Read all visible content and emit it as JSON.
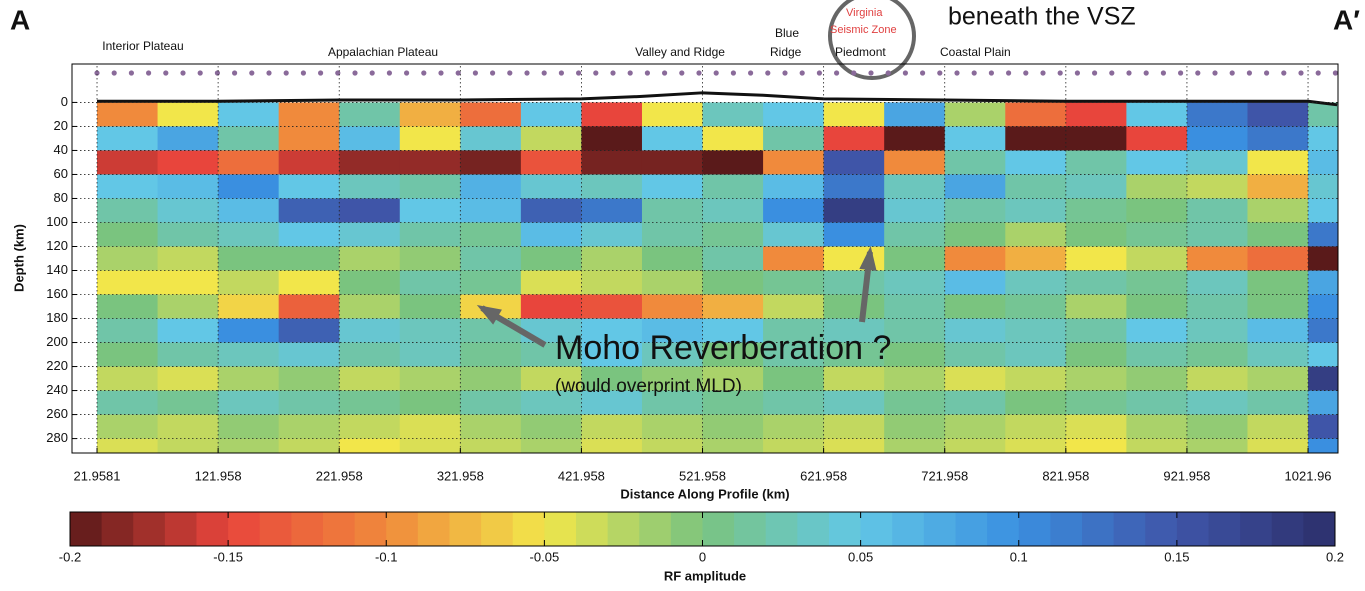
{
  "chart_data": {
    "type": "heatmap",
    "title_left": "A",
    "title_right": "A′",
    "xlabel": "Distance Along Profile (km)",
    "ylabel": "Depth (km)",
    "xlim": [
      1.3,
      1046.7
    ],
    "ylim": [
      -32,
      292
    ],
    "y_inverted": true,
    "xticks": [
      21.9581,
      121.958,
      221.958,
      321.958,
      421.958,
      521.958,
      621.958,
      721.958,
      821.958,
      921.958,
      1021.96
    ],
    "yticks": [
      0,
      20,
      40,
      60,
      80,
      100,
      120,
      140,
      160,
      180,
      200,
      220,
      240,
      260,
      280
    ],
    "grid": true,
    "xbins": [
      21.9581,
      71.958,
      121.958,
      171.958,
      221.958,
      271.958,
      321.958,
      371.958,
      421.958,
      471.958,
      521.958,
      571.958,
      621.958,
      671.958,
      721.958,
      771.958,
      821.958,
      871.958,
      921.958,
      971.958,
      1021.96,
      1071.96
    ],
    "ybins": [
      0,
      20,
      40,
      60,
      80,
      100,
      120,
      140,
      160,
      180,
      200,
      220,
      240,
      260,
      280,
      300
    ],
    "z": [
      [
        -0.1,
        -0.05,
        0.05,
        -0.1,
        0.02,
        -0.08,
        -0.12,
        0.05,
        -0.15,
        -0.05,
        0.03,
        0.05,
        -0.05,
        0.08,
        -0.02,
        -0.12,
        -0.15,
        0.05,
        0.12,
        0.15,
        0.02
      ],
      [
        0.05,
        0.08,
        0.02,
        -0.1,
        0.06,
        -0.05,
        0.04,
        -0.03,
        -0.2,
        0.05,
        -0.05,
        0.02,
        -0.15,
        -0.2,
        0.05,
        -0.2,
        -0.2,
        -0.15,
        0.1,
        0.12,
        0.05
      ],
      [
        -0.16,
        -0.15,
        -0.12,
        -0.16,
        -0.18,
        -0.18,
        -0.19,
        -0.14,
        -0.19,
        -0.19,
        -0.2,
        -0.1,
        0.15,
        -0.1,
        0.02,
        0.05,
        0.02,
        0.05,
        0.04,
        -0.05,
        0.06
      ],
      [
        0.05,
        0.06,
        0.1,
        0.05,
        0.03,
        0.02,
        0.07,
        0.04,
        0.03,
        0.05,
        0.02,
        0.06,
        0.12,
        0.03,
        0.08,
        0.02,
        0.03,
        -0.02,
        -0.03,
        -0.08,
        0.04
      ],
      [
        0.02,
        0.04,
        0.06,
        0.14,
        0.15,
        0.05,
        0.06,
        0.14,
        0.12,
        0.02,
        0.03,
        0.1,
        0.18,
        0.04,
        0.02,
        0.03,
        0.01,
        0,
        0.02,
        -0.02,
        0.05
      ],
      [
        0,
        0.02,
        0.03,
        0.05,
        0.04,
        0.02,
        0.01,
        0.06,
        0.04,
        0.02,
        0.01,
        0.04,
        0.1,
        0.02,
        0,
        -0.02,
        0,
        0.01,
        0.02,
        0,
        0.12
      ],
      [
        -0.02,
        -0.03,
        0,
        0,
        -0.02,
        -0.01,
        0.02,
        0,
        -0.02,
        0,
        0.02,
        -0.1,
        -0.05,
        0,
        -0.1,
        -0.08,
        -0.05,
        -0.03,
        -0.1,
        -0.12,
        -0.2
      ],
      [
        -0.05,
        -0.05,
        -0.03,
        -0.05,
        0,
        0.02,
        0.01,
        -0.04,
        -0.03,
        -0.02,
        0,
        0.01,
        0.02,
        0.03,
        0.06,
        0.03,
        0.02,
        0.01,
        0.03,
        0,
        0.08
      ],
      [
        0,
        -0.02,
        -0.06,
        -0.13,
        -0.02,
        0,
        -0.06,
        -0.15,
        -0.14,
        -0.1,
        -0.08,
        -0.03,
        0,
        0.02,
        0,
        0.01,
        -0.02,
        0,
        0.02,
        0,
        0.1
      ],
      [
        0.02,
        0.05,
        0.1,
        0.14,
        0.04,
        0.03,
        0.02,
        0.04,
        0.05,
        0.06,
        0.05,
        0.02,
        0.03,
        0.02,
        0.04,
        0.03,
        0.02,
        0.05,
        0.03,
        0.06,
        0.12
      ],
      [
        0,
        0.02,
        0.03,
        0.04,
        0.02,
        0.03,
        0.01,
        0.02,
        0.05,
        0.03,
        0,
        0.02,
        0.01,
        0,
        0.02,
        0.03,
        0,
        0.02,
        0.01,
        0.03,
        0.05
      ],
      [
        -0.03,
        -0.04,
        -0.02,
        -0.01,
        -0.03,
        -0.02,
        -0.01,
        -0.03,
        0,
        -0.01,
        -0.02,
        0,
        -0.03,
        -0.02,
        -0.04,
        -0.03,
        -0.02,
        -0.01,
        -0.03,
        -0.02,
        0.18
      ],
      [
        0.02,
        0.01,
        0.03,
        0.02,
        0.01,
        0,
        0.02,
        0.03,
        0.04,
        0.02,
        0.01,
        0.02,
        0.03,
        0.01,
        0.02,
        0,
        0.01,
        0.02,
        0.03,
        0.02,
        0.08
      ],
      [
        -0.02,
        -0.03,
        -0.01,
        -0.02,
        -0.03,
        -0.04,
        -0.02,
        -0.01,
        -0.03,
        -0.02,
        -0.01,
        -0.02,
        -0.03,
        -0.01,
        -0.02,
        -0.03,
        -0.04,
        -0.02,
        -0.01,
        -0.03,
        0.15
      ],
      [
        -0.04,
        -0.03,
        -0.02,
        -0.03,
        -0.05,
        -0.04,
        -0.03,
        -0.02,
        -0.04,
        -0.03,
        -0.02,
        -0.03,
        -0.04,
        -0.02,
        -0.03,
        -0.04,
        -0.05,
        -0.03,
        -0.02,
        -0.04,
        0.1
      ]
    ],
    "surface": {
      "x": [
        21.9581,
        121.958,
        221.958,
        321.958,
        421.958,
        471.958,
        521.958,
        571.958,
        621.958,
        721.958,
        821.958,
        921.958,
        1021.96,
        1046
      ],
      "values": [
        -1,
        -1,
        -2,
        -2,
        -3,
        -5,
        -8,
        -6,
        -3,
        -2,
        -1,
        -1,
        -1,
        2
      ],
      "color": "#111111"
    },
    "colorscale": [
      "#5a1a1a",
      "#e8453c",
      "#f08a3c",
      "#f2e64a",
      "#7ac47f",
      "#62c7e6",
      "#3a8fe0",
      "#3f55a8",
      "#2c2f6b"
    ],
    "clim": [
      -0.2,
      0.2
    ],
    "colorbar_ticks": [
      -0.2,
      -0.15,
      -0.1,
      -0.05,
      0,
      0.05,
      0.1,
      0.15,
      0.2
    ],
    "colorbar_label": "RF amplitude",
    "regions": [
      "Interior Plateau",
      "Appalachian Plateau",
      "Valley and Ridge",
      "Blue",
      "Ridge",
      "Piedmont",
      "Coastal Plain"
    ],
    "vsz_label": [
      "Virginia",
      "Seismic Zone"
    ],
    "annotations": [
      "beneath the VSZ",
      "Moho Reverberation ?",
      "(would overprint MLD)"
    ]
  }
}
